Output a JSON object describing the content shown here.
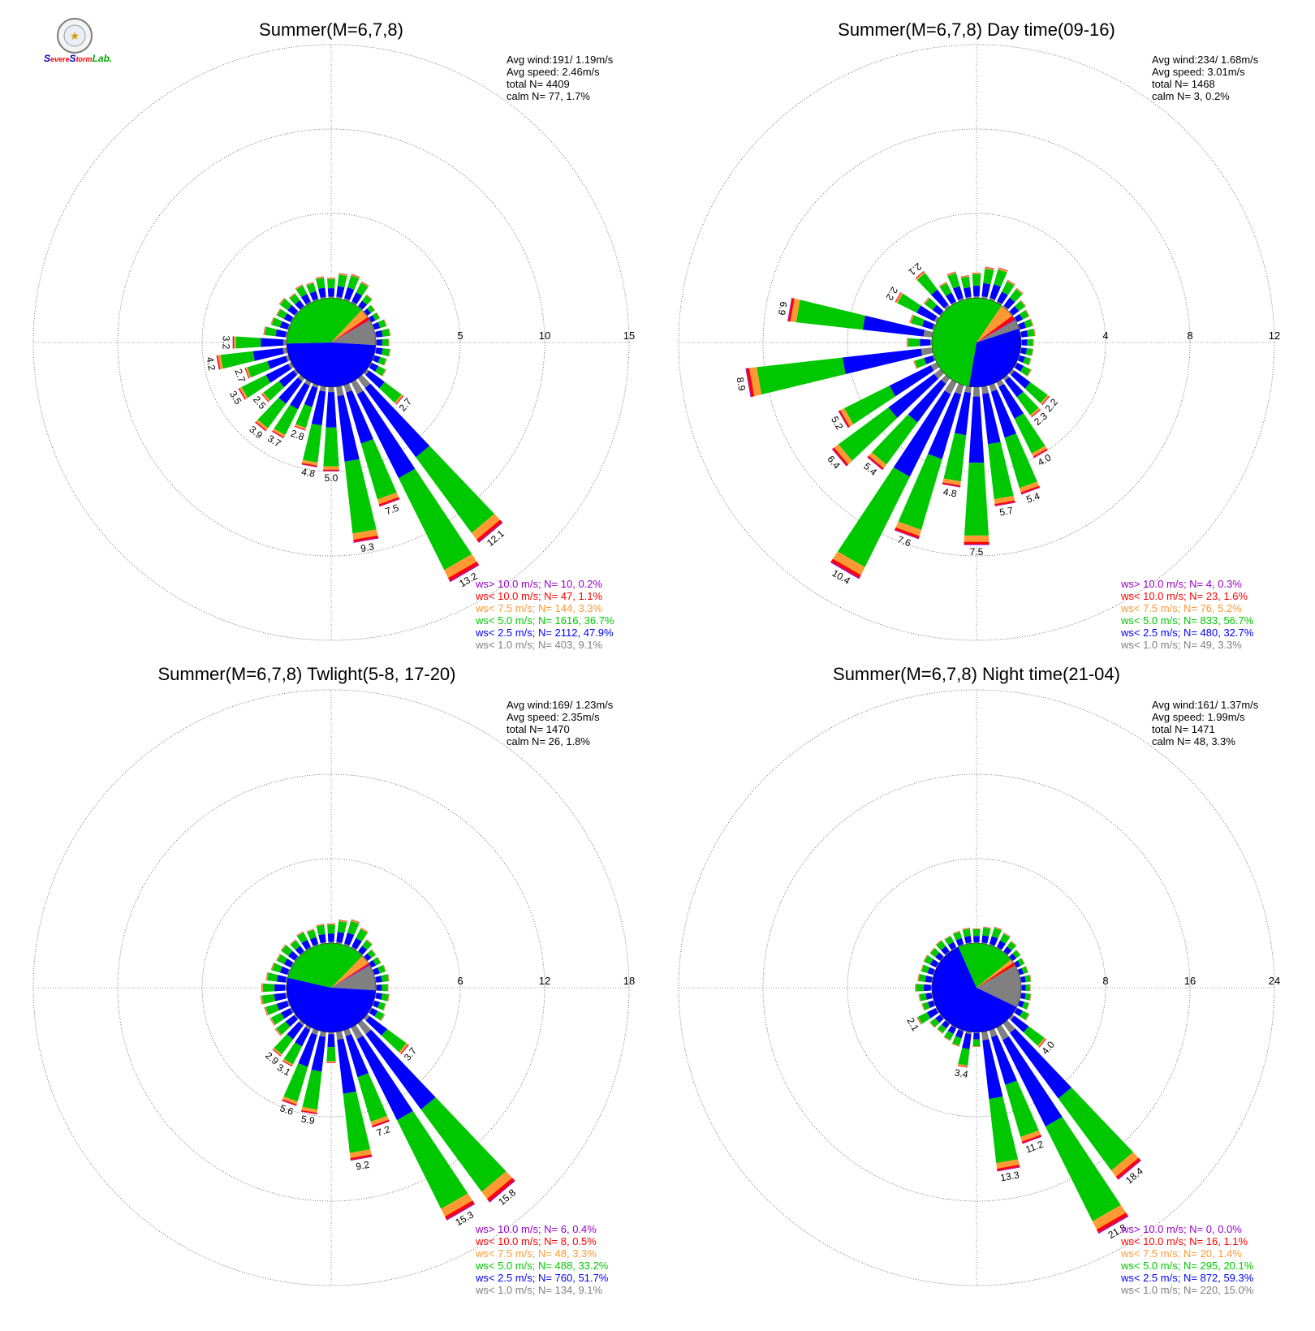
{
  "logo": {
    "text_s1": "S",
    "text_evere": "evere",
    "text_s2": "S",
    "text_torm": "torm",
    "text_lab": "Lab."
  },
  "colors": {
    "calm": "#808080",
    "lt1": "#808080",
    "lt2_5": "#0000ff",
    "lt5": "#00c800",
    "lt7_5": "#ff9933",
    "lt10": "#ff0000",
    "gt10": "#9900cc"
  },
  "chart_data": [
    {
      "type": "wind-rose",
      "title": "Summer(M=6,7,8)",
      "stats": [
        "Avg wind:191/ 1.19m/s",
        "Avg speed: 2.46m/s",
        "total N=        4409",
        "calm N=      77,   1.7%"
      ],
      "rings": [
        5,
        10,
        15
      ],
      "ring_labels": [
        "5",
        "10",
        "15"
      ],
      "legend": [
        {
          "text": "ws> 10.0 m/s; N=    10,  0.2%",
          "color": "#9900cc"
        },
        {
          "text": "ws< 10.0 m/s; N=    47,  1.1%",
          "color": "#ff0000"
        },
        {
          "text": "ws<  7.5 m/s; N=   144,  3.3%",
          "color": "#ff9933"
        },
        {
          "text": "ws<  5.0 m/s; N= 1616, 36.7%",
          "color": "#00c800"
        },
        {
          "text": "ws<  2.5 m/s; N= 2112, 47.9%",
          "color": "#0000ff"
        },
        {
          "text": "ws<  1.0 m/s; N=   403,  9.1%",
          "color": "#808080"
        }
      ],
      "pie": [
        9.1,
        47.9,
        36.7,
        3.3,
        1.1,
        0.2
      ],
      "sectors": [
        {
          "dir": 0,
          "total": 1.2
        },
        {
          "dir": 10,
          "total": 1.5
        },
        {
          "dir": 20,
          "total": 1.6
        },
        {
          "dir": 30,
          "total": 1.4
        },
        {
          "dir": 40,
          "total": 0.9
        },
        {
          "dir": 50,
          "total": 0.6
        },
        {
          "dir": 60,
          "total": 0.6
        },
        {
          "dir": 70,
          "total": 0.8
        },
        {
          "dir": 80,
          "total": 0.9
        },
        {
          "dir": 90,
          "total": 0.8
        },
        {
          "dir": 100,
          "total": 0.9
        },
        {
          "dir": 110,
          "total": 0.8
        },
        {
          "dir": 120,
          "total": 1.0
        },
        {
          "dir": 130,
          "total": 2.7,
          "label": "2.7"
        },
        {
          "dir": 140,
          "total": 12.1,
          "label": "12.1"
        },
        {
          "dir": 150,
          "total": 13.2,
          "label": "13.2"
        },
        {
          "dir": 160,
          "total": 7.5,
          "label": "7.5"
        },
        {
          "dir": 170,
          "total": 9.3,
          "label": "9.3"
        },
        {
          "dir": 180,
          "total": 5.0,
          "label": "5.0"
        },
        {
          "dir": 190,
          "total": 4.8,
          "label": "4.8"
        },
        {
          "dir": 200,
          "total": 2.8,
          "label": "2.8"
        },
        {
          "dir": 210,
          "total": 3.7,
          "label": "3.7"
        },
        {
          "dir": 220,
          "total": 3.9,
          "label": "3.9"
        },
        {
          "dir": 230,
          "total": 2.5,
          "label": "2.5"
        },
        {
          "dir": 240,
          "total": 3.5,
          "label": "3.5"
        },
        {
          "dir": 250,
          "total": 2.7,
          "label": "2.7"
        },
        {
          "dir": 260,
          "total": 4.2,
          "label": "4.2"
        },
        {
          "dir": 270,
          "total": 3.2,
          "label": "3.2"
        },
        {
          "dir": 280,
          "total": 1.4
        },
        {
          "dir": 290,
          "total": 1.1
        },
        {
          "dir": 300,
          "total": 1.0
        },
        {
          "dir": 310,
          "total": 1.2
        },
        {
          "dir": 320,
          "total": 1.0
        },
        {
          "dir": 330,
          "total": 1.2
        },
        {
          "dir": 340,
          "total": 1.1
        },
        {
          "dir": 350,
          "total": 1.3
        }
      ]
    },
    {
      "type": "wind-rose",
      "title": "Summer(M=6,7,8) Day time(09-16)",
      "stats": [
        "Avg wind:234/ 1.68m/s",
        "Avg speed: 3.01m/s",
        "total N=        1468",
        "calm N=       3,   0.2%"
      ],
      "rings": [
        4,
        8,
        12
      ],
      "ring_labels": [
        "4",
        "8",
        "12"
      ],
      "legend": [
        {
          "text": "ws> 10.0 m/s; N=     4,  0.3%",
          "color": "#9900cc"
        },
        {
          "text": "ws< 10.0 m/s; N=    23,  1.6%",
          "color": "#ff0000"
        },
        {
          "text": "ws<  7.5 m/s; N=    76,  5.2%",
          "color": "#ff9933"
        },
        {
          "text": "ws<  5.0 m/s; N=   833, 56.7%",
          "color": "#00c800"
        },
        {
          "text": "ws<  2.5 m/s; N=   480, 32.7%",
          "color": "#0000ff"
        },
        {
          "text": "ws<  1.0 m/s; N=    49,  3.3%",
          "color": "#808080"
        }
      ],
      "pie": [
        3.3,
        32.7,
        56.7,
        5.2,
        1.6,
        0.3
      ],
      "sectors": [
        {
          "dir": 0,
          "total": 1.2
        },
        {
          "dir": 10,
          "total": 1.5
        },
        {
          "dir": 20,
          "total": 1.6
        },
        {
          "dir": 30,
          "total": 1.2
        },
        {
          "dir": 40,
          "total": 1.1
        },
        {
          "dir": 50,
          "total": 0.8
        },
        {
          "dir": 60,
          "total": 0.7
        },
        {
          "dir": 70,
          "total": 0.7
        },
        {
          "dir": 80,
          "total": 0.7
        },
        {
          "dir": 90,
          "total": 0.6
        },
        {
          "dir": 100,
          "total": 0.6
        },
        {
          "dir": 110,
          "total": 0.6
        },
        {
          "dir": 120,
          "total": 0.8
        },
        {
          "dir": 130,
          "total": 2.2,
          "label": "2.2"
        },
        {
          "dir": 140,
          "total": 2.3,
          "label": "2.3"
        },
        {
          "dir": 150,
          "total": 4.0,
          "label": "4.0"
        },
        {
          "dir": 160,
          "total": 5.4,
          "label": "5.4"
        },
        {
          "dir": 170,
          "total": 5.7,
          "label": "5.7"
        },
        {
          "dir": 180,
          "total": 7.5,
          "label": "7.5"
        },
        {
          "dir": 190,
          "total": 4.8,
          "label": "4.8"
        },
        {
          "dir": 200,
          "total": 7.6,
          "label": "7.6"
        },
        {
          "dir": 210,
          "total": 10.4,
          "label": "10.4"
        },
        {
          "dir": 220,
          "total": 5.4,
          "label": "5.4"
        },
        {
          "dir": 230,
          "total": 6.4,
          "label": "6.4"
        },
        {
          "dir": 240,
          "total": 5.2,
          "label": "5.2"
        },
        {
          "dir": 250,
          "total": 1.0
        },
        {
          "dir": 260,
          "total": 8.9,
          "label": "8.9"
        },
        {
          "dir": 270,
          "total": 1.2
        },
        {
          "dir": 280,
          "total": 6.9,
          "label": "6.9"
        },
        {
          "dir": 290,
          "total": 1.2
        },
        {
          "dir": 300,
          "total": 2.2,
          "label": "2.2"
        },
        {
          "dir": 310,
          "total": 1.0
        },
        {
          "dir": 320,
          "total": 2.1,
          "label": "2.1"
        },
        {
          "dir": 330,
          "total": 1.1
        },
        {
          "dir": 340,
          "total": 1.4
        },
        {
          "dir": 350,
          "total": 1.1
        }
      ]
    },
    {
      "type": "wind-rose",
      "title": "Summer(M=6,7,8) Twlight(5-8, 17-20)",
      "stats": [
        "Avg wind:169/ 1.23m/s",
        "Avg speed: 2.35m/s",
        "total N=        1470",
        "calm N=      26,   1.8%"
      ],
      "rings": [
        6,
        12,
        18
      ],
      "ring_labels": [
        "6",
        "12",
        "18"
      ],
      "legend": [
        {
          "text": "ws> 10.0 m/s; N=     6,  0.4%",
          "color": "#9900cc"
        },
        {
          "text": "ws< 10.0 m/s; N=     8,  0.5%",
          "color": "#ff0000"
        },
        {
          "text": "ws<  7.5 m/s; N=    48,  3.3%",
          "color": "#ff9933"
        },
        {
          "text": "ws<  5.0 m/s; N=   488, 33.2%",
          "color": "#00c800"
        },
        {
          "text": "ws<  2.5 m/s; N=   760, 51.7%",
          "color": "#0000ff"
        },
        {
          "text": "ws<  1.0 m/s; N=   134,  9.1%",
          "color": "#808080"
        }
      ],
      "pie": [
        9.1,
        51.7,
        33.2,
        3.3,
        0.5,
        0.4
      ],
      "sectors": [
        {
          "dir": 0,
          "total": 1.4
        },
        {
          "dir": 10,
          "total": 1.7
        },
        {
          "dir": 20,
          "total": 1.9
        },
        {
          "dir": 30,
          "total": 1.6
        },
        {
          "dir": 40,
          "total": 1.1
        },
        {
          "dir": 50,
          "total": 0.8
        },
        {
          "dir": 60,
          "total": 0.8
        },
        {
          "dir": 70,
          "total": 0.9
        },
        {
          "dir": 80,
          "total": 1.0
        },
        {
          "dir": 90,
          "total": 0.9
        },
        {
          "dir": 100,
          "total": 1.0
        },
        {
          "dir": 110,
          "total": 0.9
        },
        {
          "dir": 120,
          "total": 1.1
        },
        {
          "dir": 130,
          "total": 3.7,
          "label": "3.7"
        },
        {
          "dir": 140,
          "total": 15.8,
          "label": "15.8"
        },
        {
          "dir": 150,
          "total": 15.3,
          "label": "15.3"
        },
        {
          "dir": 160,
          "total": 7.2,
          "label": "7.2"
        },
        {
          "dir": 170,
          "total": 9.2,
          "label": "9.2"
        },
        {
          "dir": 180,
          "total": 2.2
        },
        {
          "dir": 190,
          "total": 5.9,
          "label": "5.9"
        },
        {
          "dir": 200,
          "total": 5.6,
          "label": "5.6"
        },
        {
          "dir": 210,
          "total": 3.1,
          "label": "3.1"
        },
        {
          "dir": 220,
          "total": 2.9,
          "label": "2.9"
        },
        {
          "dir": 230,
          "total": 1.8
        },
        {
          "dir": 240,
          "total": 1.7
        },
        {
          "dir": 250,
          "total": 1.8
        },
        {
          "dir": 260,
          "total": 1.9
        },
        {
          "dir": 270,
          "total": 1.8
        },
        {
          "dir": 280,
          "total": 1.5
        },
        {
          "dir": 290,
          "total": 1.3
        },
        {
          "dir": 300,
          "total": 1.2
        },
        {
          "dir": 310,
          "total": 1.3
        },
        {
          "dir": 320,
          "total": 1.1
        },
        {
          "dir": 330,
          "total": 1.3
        },
        {
          "dir": 340,
          "total": 1.2
        },
        {
          "dir": 350,
          "total": 1.4
        }
      ]
    },
    {
      "type": "wind-rose",
      "title": "Summer(M=6,7,8) Night time(21-04)",
      "stats": [
        "Avg wind:161/ 1.37m/s",
        "Avg speed: 1.99m/s",
        "total N=        1471",
        "calm N=      48,   3.3%"
      ],
      "rings": [
        8,
        16,
        24
      ],
      "ring_labels": [
        "8",
        "16",
        "24"
      ],
      "legend": [
        {
          "text": "ws> 10.0 m/s; N=     0,  0.0%",
          "color": "#9900cc"
        },
        {
          "text": "ws< 10.0 m/s; N=    16,  1.1%",
          "color": "#ff0000"
        },
        {
          "text": "ws<  7.5 m/s; N=    20,  1.4%",
          "color": "#ff9933"
        },
        {
          "text": "ws<  5.0 m/s; N=   295, 20.1%",
          "color": "#00c800"
        },
        {
          "text": "ws<  2.5 m/s; N=   872, 59.3%",
          "color": "#0000ff"
        },
        {
          "text": "ws<  1.0 m/s; N=   220, 15.0%",
          "color": "#808080"
        }
      ],
      "pie": [
        15.0,
        59.3,
        20.1,
        1.4,
        1.1,
        0.0
      ],
      "sectors": [
        {
          "dir": 0,
          "total": 1.4
        },
        {
          "dir": 10,
          "total": 1.6
        },
        {
          "dir": 20,
          "total": 1.8
        },
        {
          "dir": 30,
          "total": 1.6
        },
        {
          "dir": 40,
          "total": 1.3
        },
        {
          "dir": 50,
          "total": 1.0
        },
        {
          "dir": 60,
          "total": 0.9
        },
        {
          "dir": 70,
          "total": 0.9
        },
        {
          "dir": 80,
          "total": 1.0
        },
        {
          "dir": 90,
          "total": 0.9
        },
        {
          "dir": 100,
          "total": 1.0
        },
        {
          "dir": 110,
          "total": 1.0
        },
        {
          "dir": 120,
          "total": 1.4
        },
        {
          "dir": 130,
          "total": 4.0,
          "label": "4.0"
        },
        {
          "dir": 140,
          "total": 18.4,
          "label": "18.4"
        },
        {
          "dir": 150,
          "total": 21.8,
          "label": "21.8"
        },
        {
          "dir": 160,
          "total": 11.2,
          "label": "11.2"
        },
        {
          "dir": 170,
          "total": 13.3,
          "label": "13.3"
        },
        {
          "dir": 180,
          "total": 1.4
        },
        {
          "dir": 190,
          "total": 3.4,
          "label": "3.4"
        },
        {
          "dir": 200,
          "total": 1.6
        },
        {
          "dir": 210,
          "total": 1.4
        },
        {
          "dir": 220,
          "total": 1.2
        },
        {
          "dir": 230,
          "total": 1.3
        },
        {
          "dir": 240,
          "total": 2.1,
          "label": "2.1"
        },
        {
          "dir": 250,
          "total": 1.2
        },
        {
          "dir": 260,
          "total": 1.3
        },
        {
          "dir": 270,
          "total": 1.6
        },
        {
          "dir": 280,
          "total": 1.4
        },
        {
          "dir": 290,
          "total": 1.3
        },
        {
          "dir": 300,
          "total": 1.4
        },
        {
          "dir": 310,
          "total": 1.3
        },
        {
          "dir": 320,
          "total": 1.4
        },
        {
          "dir": 330,
          "total": 1.3
        },
        {
          "dir": 340,
          "total": 1.4
        },
        {
          "dir": 350,
          "total": 1.5
        }
      ]
    }
  ]
}
